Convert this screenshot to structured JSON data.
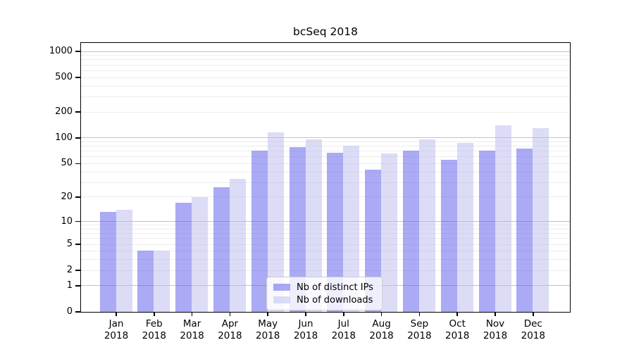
{
  "title": "bcSeq 2018",
  "chart_data": {
    "type": "bar",
    "title": "bcSeq 2018",
    "categories": [
      "Jan",
      "Feb",
      "Mar",
      "Apr",
      "May",
      "Jun",
      "Jul",
      "Aug",
      "Sep",
      "Oct",
      "Nov",
      "Dec"
    ],
    "x_year_label": "2018",
    "series": [
      {
        "name": "Nb of distinct IPs",
        "color": "rgba(85,85,235,0.5)",
        "values": [
          13,
          4,
          17,
          26,
          70,
          78,
          66,
          42,
          70,
          55,
          70,
          75
        ]
      },
      {
        "name": "Nb of downloads",
        "color": "rgba(185,185,240,0.5)",
        "values": [
          14,
          4,
          20,
          33,
          114,
          96,
          80,
          65,
          96,
          87,
          140,
          129
        ]
      }
    ],
    "y_axis": {
      "scale": "log10(value+1)",
      "tick_values": [
        0,
        1,
        2,
        5,
        10,
        20,
        50,
        100,
        200,
        500,
        1000
      ],
      "tick_labels": [
        "0",
        "1",
        "2",
        "5",
        "10",
        "20",
        "50",
        "100",
        "200",
        "500",
        "1000"
      ],
      "ylim": [
        0,
        1250
      ]
    },
    "grid": {
      "major_line_values": [
        1,
        10,
        100,
        1000
      ],
      "major_color": "#c3c3c3",
      "minor_color": "#ededed"
    },
    "legend": {
      "position": "lower-center",
      "entries": [
        "Nb of distinct IPs",
        "Nb of downloads"
      ]
    }
  }
}
